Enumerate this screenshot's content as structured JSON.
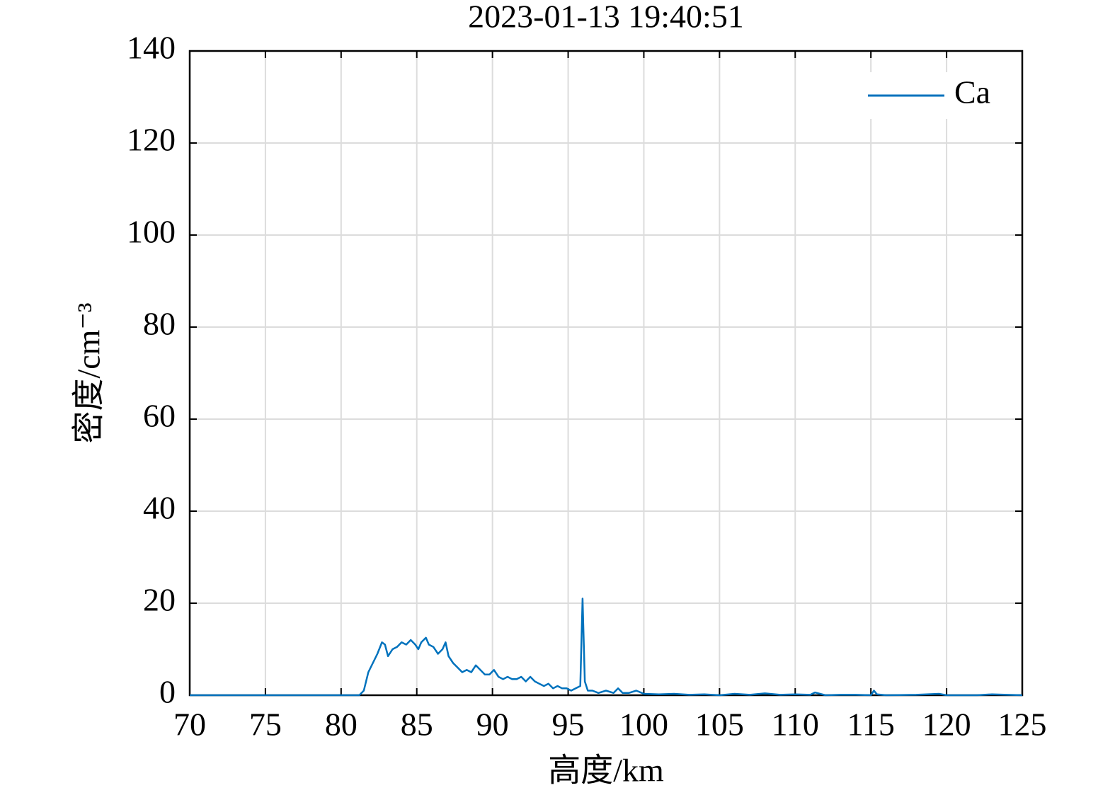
{
  "chart_data": {
    "type": "line",
    "title": "2023-01-13 19:40:51",
    "xlabel": "高度/km",
    "ylabel": "密度/cm⁻³",
    "x": [
      70,
      81.2,
      81.5,
      81.8,
      82.1,
      82.4,
      82.7,
      82.9,
      83.1,
      83.4,
      83.7,
      84,
      84.3,
      84.6,
      84.9,
      85.1,
      85.3,
      85.6,
      85.8,
      86.1,
      86.4,
      86.7,
      86.9,
      87.1,
      87.4,
      87.7,
      88,
      88.3,
      88.6,
      88.9,
      89.2,
      89.5,
      89.8,
      90.1,
      90.4,
      90.7,
      91,
      91.3,
      91.6,
      91.9,
      92.2,
      92.5,
      92.8,
      93.1,
      93.4,
      93.7,
      94,
      94.3,
      94.6,
      94.9,
      95.2,
      95.5,
      95.8,
      95.95,
      96.1,
      96.3,
      96.6,
      97,
      97.5,
      98,
      98.3,
      98.6,
      99,
      99.5,
      100,
      101,
      102,
      103,
      104,
      105,
      106,
      107,
      108,
      109,
      110,
      111,
      111.3,
      112,
      113,
      114,
      115,
      115.2,
      115.4,
      116,
      118,
      119.5,
      120,
      122,
      123,
      125
    ],
    "series": [
      {
        "name": "Ca",
        "color": "#0072bd",
        "values": [
          0,
          0,
          1,
          5,
          7,
          9,
          11.5,
          11,
          8.5,
          10,
          10.5,
          11.5,
          11,
          12,
          11,
          10,
          11.5,
          12.5,
          11,
          10.5,
          9,
          10,
          11.5,
          8.5,
          7,
          6,
          5,
          5.5,
          5,
          6.5,
          5.5,
          4.5,
          4.5,
          5.5,
          4,
          3.5,
          4,
          3.5,
          3.5,
          4,
          3,
          4,
          3,
          2.5,
          2,
          2.5,
          1.5,
          2,
          1.5,
          1.5,
          1,
          1.5,
          2,
          21,
          3,
          1,
          1,
          0.5,
          1,
          0.5,
          1.5,
          0.5,
          0.5,
          1,
          0.3,
          0.2,
          0.3,
          0.1,
          0.2,
          0,
          0.3,
          0.1,
          0.4,
          0.1,
          0.2,
          0.1,
          0.6,
          0,
          0.1,
          0.1,
          0,
          1,
          0.2,
          0,
          0.1,
          0.3,
          0,
          0,
          0.2,
          0
        ]
      }
    ],
    "xlim": [
      70,
      125
    ],
    "xticks": [
      70,
      75,
      80,
      85,
      90,
      95,
      100,
      105,
      110,
      115,
      120,
      125
    ],
    "ylim": [
      0,
      140
    ],
    "yticks": [
      0,
      20,
      40,
      60,
      80,
      100,
      120,
      140
    ],
    "grid": true,
    "legend": "upper right"
  }
}
